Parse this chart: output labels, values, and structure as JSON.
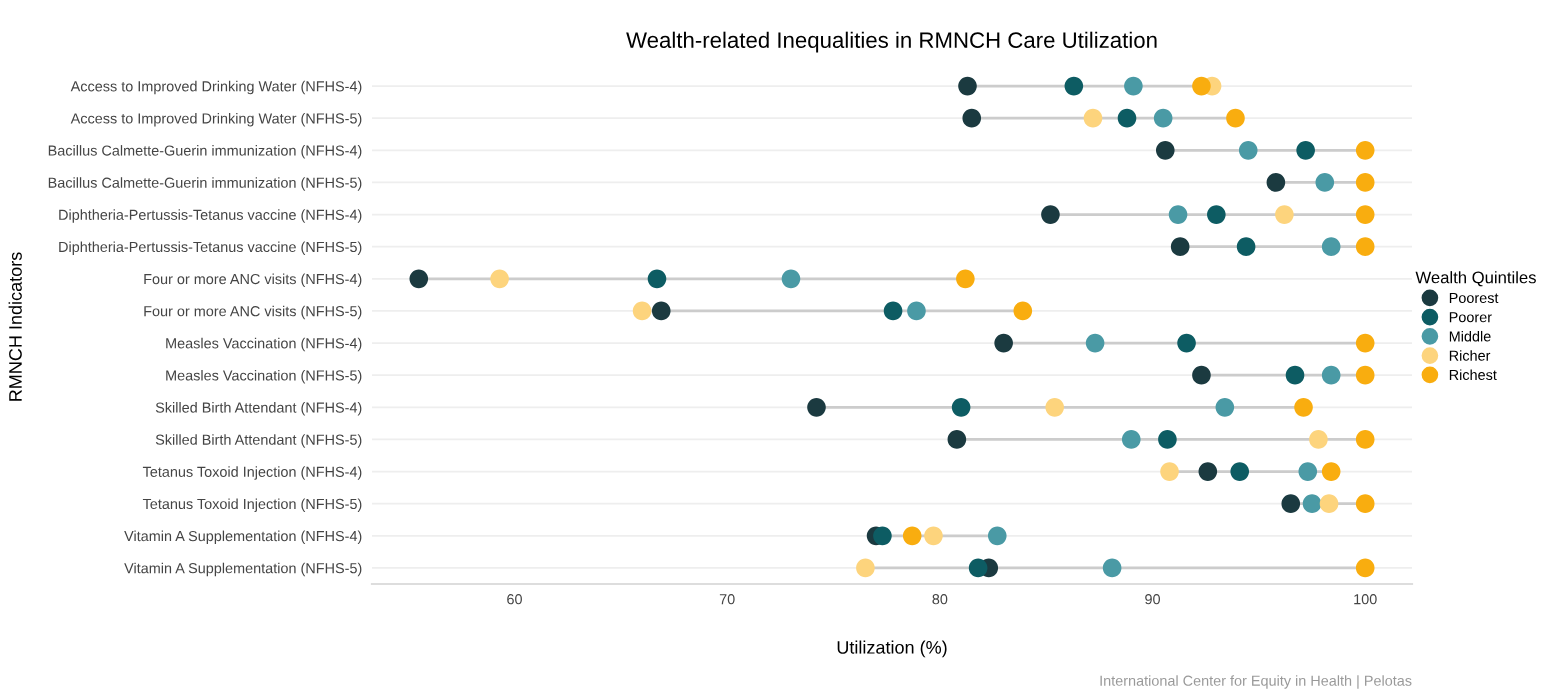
{
  "chart_data": {
    "type": "scatter",
    "orientation": "horizontal",
    "title": "Wealth-related Inequalities in RMNCH Care Utilization",
    "xlabel": "Utilization (%)",
    "ylabel": "RMNCH Indicators",
    "legend_title": "Wealth Quintiles",
    "categories": [
      "Access to Improved Drinking Water (NFHS-4)",
      "Access to Improved Drinking Water (NFHS-5)",
      "Bacillus Calmette-Guerin immunization (NFHS-4)",
      "Bacillus Calmette-Guerin immunization (NFHS-5)",
      "Diphtheria-Pertussis-Tetanus vaccine (NFHS-4)",
      "Diphtheria-Pertussis-Tetanus vaccine (NFHS-5)",
      "Four or more ANC visits (NFHS-4)",
      "Four or more ANC visits (NFHS-5)",
      "Measles Vaccination (NFHS-4)",
      "Measles Vaccination (NFHS-5)",
      "Skilled Birth Attendant (NFHS-4)",
      "Skilled Birth Attendant (NFHS-5)",
      "Tetanus Toxoid Injection (NFHS-4)",
      "Tetanus Toxoid Injection (NFHS-5)",
      "Vitamin A Supplementation (NFHS-4)",
      "Vitamin A Supplementation (NFHS-5)"
    ],
    "series": [
      {
        "name": "Poorest",
        "color": "#1b3a40",
        "values": [
          81.3,
          81.5,
          90.6,
          95.8,
          85.2,
          91.3,
          55.5,
          66.9,
          83.0,
          92.3,
          74.2,
          80.8,
          92.6,
          96.5,
          77.0,
          82.3
        ]
      },
      {
        "name": "Poorer",
        "color": "#0d5c63",
        "values": [
          86.3,
          88.8,
          97.2,
          null,
          93.0,
          94.4,
          66.7,
          77.8,
          91.6,
          96.7,
          81.0,
          90.7,
          94.1,
          null,
          77.3,
          81.8
        ]
      },
      {
        "name": "Middle",
        "color": "#4a9aa5",
        "values": [
          89.1,
          90.5,
          94.5,
          98.1,
          91.2,
          98.4,
          73.0,
          78.9,
          87.3,
          98.4,
          93.4,
          89.0,
          97.3,
          97.5,
          82.7,
          88.1
        ]
      },
      {
        "name": "Richer",
        "color": "#fdd47d",
        "values": [
          92.8,
          87.2,
          null,
          null,
          96.2,
          null,
          59.3,
          66.0,
          null,
          null,
          85.4,
          97.8,
          90.8,
          98.3,
          79.7,
          76.5
        ]
      },
      {
        "name": "Richest",
        "color": "#f9ad0f",
        "values": [
          92.3,
          93.9,
          100,
          100,
          100,
          100,
          81.2,
          83.9,
          100,
          100,
          97.1,
          100,
          98.4,
          100,
          78.7,
          100
        ]
      }
    ],
    "xlim": [
      53.3,
      102.2
    ],
    "xticks": [
      60,
      70,
      80,
      90,
      100
    ],
    "grid": "y",
    "legend": "right",
    "marker": "circle",
    "annotations": [
      "International Center for Equity in Health | Pelotas"
    ]
  }
}
